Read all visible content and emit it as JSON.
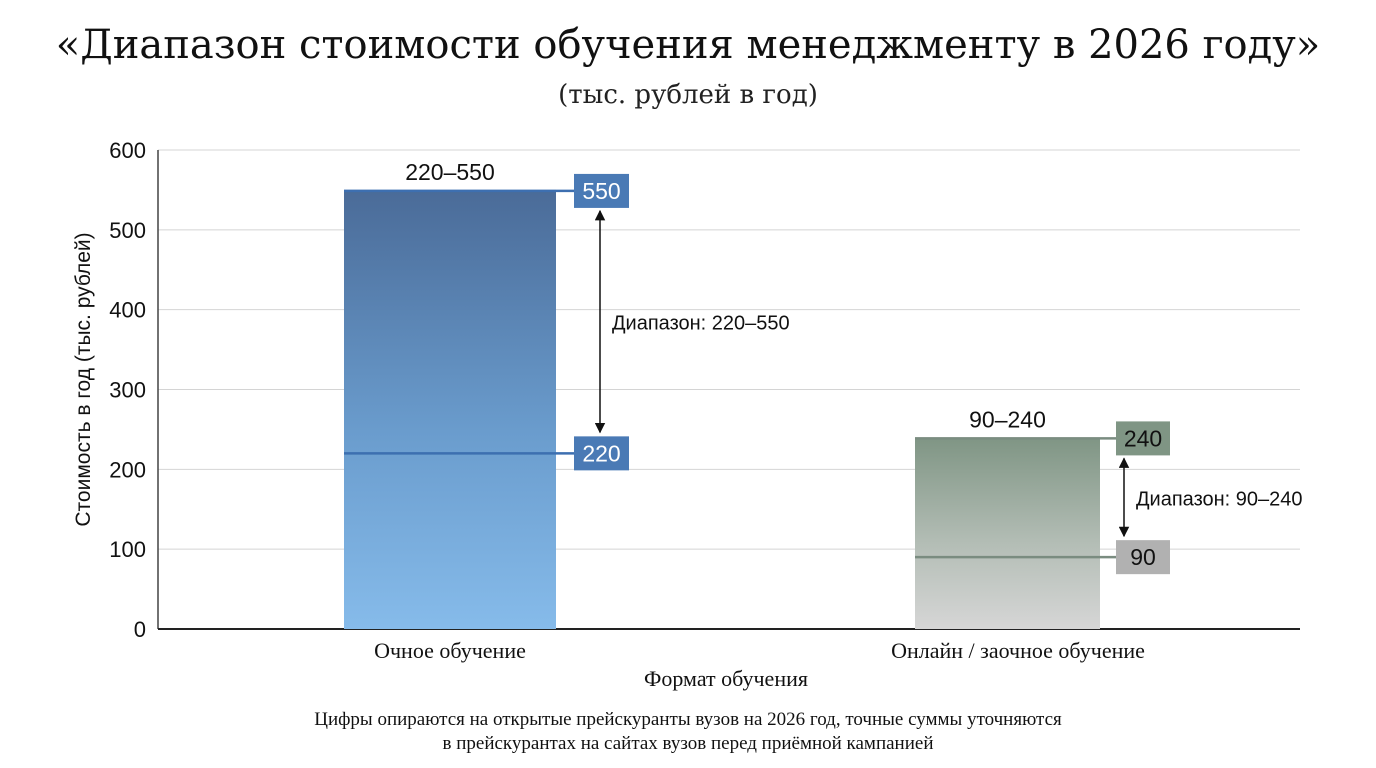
{
  "title": "«Диапазон стоимости обучения менеджменту в 2026 году»",
  "subtitle": "(тыс. рублей в год)",
  "footnote": {
    "line1": "Цифры опираются на открытые прейскуранты вузов на 2026 год, точные суммы уточняются",
    "line2": "в прейскурантах на сайтах вузов перед приёмной кампанией"
  },
  "chart_data": {
    "type": "bar",
    "xlabel": "Формат обучения",
    "ylabel": "Стоимость в год (тыс. рублей)",
    "ylim": [
      0,
      600
    ],
    "yticks": [
      0,
      100,
      200,
      300,
      400,
      500,
      600
    ],
    "grid": true,
    "categories": [
      "Очное обучение",
      "Онлайн / заочное обучение"
    ],
    "ranges": [
      {
        "category": "Очное обучение",
        "min": 220,
        "max": 550,
        "top_label": "220–550",
        "min_label": "220",
        "max_label": "550",
        "range_label": "Диапазон: 220–550",
        "color_top": "#4a6b98",
        "color_mid": "#6a9ccd",
        "color_bottom": "#86bbea",
        "label_box_color": "#4a7ab5",
        "line_color": "#3d6fb0"
      },
      {
        "category": "Онлайн / заочное обучение",
        "min": 90,
        "max": 240,
        "top_label": "90–240",
        "min_label": "90",
        "max_label": "240",
        "range_label": "Диапазон: 90–240",
        "color_top": "#7f9584",
        "color_mid": "#b3bdb5",
        "color_bottom": "#d6d6d6",
        "label_box_color_max": "#7f9584",
        "label_box_color_min": "#b1b1b1",
        "line_color": "#7a8c80"
      }
    ]
  }
}
